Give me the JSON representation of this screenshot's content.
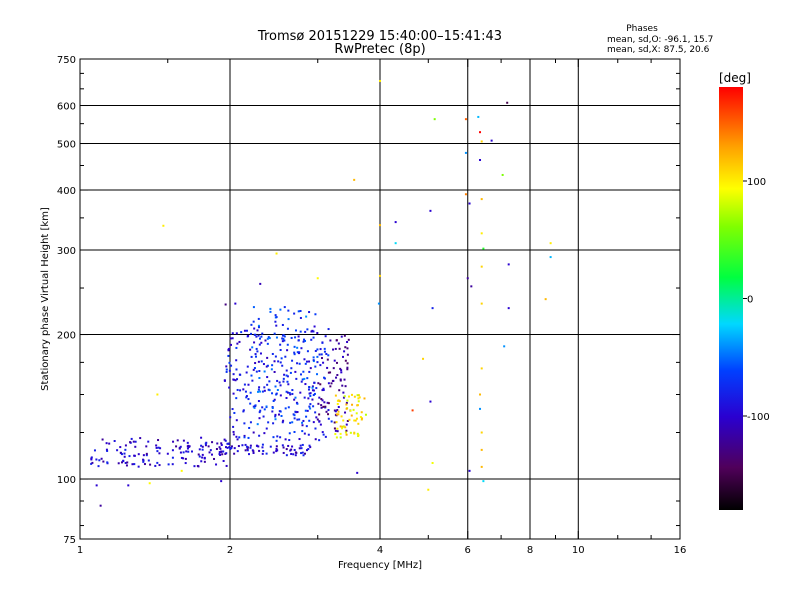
{
  "header": {
    "title_line1": "Tromsø 20151229 15:40:00–15:41:43",
    "title_line2": "RwPretec (8p)"
  },
  "stats": {
    "heading": "Phases",
    "line1": "mean, sd,O: -96.1, 15.7",
    "line2": "mean, sd,X:  87.5, 20.6"
  },
  "colorbar": {
    "unit": "[deg]",
    "tick_labels": [
      "100",
      "0",
      "-100"
    ],
    "tick_values": [
      100,
      0,
      -100
    ],
    "range": [
      -180,
      180
    ],
    "colormap": "rainbow (black-purple-blue-cyan-green-yellow-red)"
  },
  "chart_data": {
    "type": "scatter",
    "xlabel": "Frequency [MHz]",
    "ylabel": "Stationary phase Virtual Height [km]",
    "xscale": "log",
    "yscale": "log",
    "xlim": [
      1,
      16
    ],
    "ylim": [
      75,
      750
    ],
    "x_ticks": [
      1,
      2,
      4,
      6,
      8,
      10,
      16
    ],
    "x_tick_labels": [
      "1",
      "2",
      "4",
      "6",
      "8",
      "10",
      "16"
    ],
    "y_ticks": [
      75,
      100,
      200,
      300,
      400,
      500,
      600,
      750
    ],
    "y_tick_labels": [
      "75",
      "100",
      "200",
      "300",
      "400",
      "500",
      "600",
      "750"
    ],
    "grid": true,
    "grid_x": [
      2,
      4,
      6,
      8,
      10
    ],
    "grid_y": [
      100,
      200,
      300,
      400,
      500,
      600
    ],
    "color_encodes": "phase [deg]",
    "clusters": [
      {
        "x_range": [
          1.05,
          2.0
        ],
        "h_range": [
          106,
          122
        ],
        "phase": -100,
        "n": 140
      },
      {
        "x_range": [
          1.9,
          2.9
        ],
        "h_range": [
          112,
          118
        ],
        "phase": -100,
        "n": 70
      },
      {
        "x_range": [
          1.95,
          3.2
        ],
        "h_range": [
          120,
          210
        ],
        "phase": -85,
        "n": 260
      },
      {
        "x_range": [
          2.2,
          3.0
        ],
        "h_range": [
          130,
          230
        ],
        "phase": -65,
        "n": 120
      },
      {
        "x_range": [
          3.0,
          3.5
        ],
        "h_range": [
          125,
          200
        ],
        "phase": -120,
        "n": 80
      },
      {
        "x_range": [
          3.25,
          3.75
        ],
        "h_range": [
          122,
          150
        ],
        "phase": 100,
        "n": 60
      }
    ],
    "points": [
      {
        "x": 1.08,
        "y": 97,
        "phase": -100
      },
      {
        "x": 1.1,
        "y": 88,
        "phase": -120
      },
      {
        "x": 1.25,
        "y": 97,
        "phase": -100
      },
      {
        "x": 1.38,
        "y": 98,
        "phase": 95
      },
      {
        "x": 1.47,
        "y": 337,
        "phase": 100
      },
      {
        "x": 1.43,
        "y": 150,
        "phase": 100
      },
      {
        "x": 1.6,
        "y": 104,
        "phase": 95
      },
      {
        "x": 1.92,
        "y": 99,
        "phase": -100
      },
      {
        "x": 1.96,
        "y": 231,
        "phase": -130
      },
      {
        "x": 2.05,
        "y": 232,
        "phase": -100
      },
      {
        "x": 2.3,
        "y": 255,
        "phase": -110
      },
      {
        "x": 2.48,
        "y": 295,
        "phase": 100
      },
      {
        "x": 3.0,
        "y": 262,
        "phase": 95
      },
      {
        "x": 3.55,
        "y": 420,
        "phase": 120
      },
      {
        "x": 3.6,
        "y": 103,
        "phase": -100
      },
      {
        "x": 4.0,
        "y": 675,
        "phase": 100
      },
      {
        "x": 4.0,
        "y": 338,
        "phase": 120
      },
      {
        "x": 4.0,
        "y": 265,
        "phase": 110
      },
      {
        "x": 3.98,
        "y": 232,
        "phase": -40
      },
      {
        "x": 4.3,
        "y": 343,
        "phase": -100
      },
      {
        "x": 4.3,
        "y": 310,
        "phase": -20
      },
      {
        "x": 4.65,
        "y": 139,
        "phase": 160
      },
      {
        "x": 4.88,
        "y": 178,
        "phase": 110
      },
      {
        "x": 5.05,
        "y": 362,
        "phase": -100
      },
      {
        "x": 5.15,
        "y": 562,
        "phase": 60
      },
      {
        "x": 5.1,
        "y": 227,
        "phase": -80
      },
      {
        "x": 5.05,
        "y": 145,
        "phase": -100
      },
      {
        "x": 5.1,
        "y": 108,
        "phase": 90
      },
      {
        "x": 5.0,
        "y": 95,
        "phase": 100
      },
      {
        "x": 5.95,
        "y": 562,
        "phase": 150
      },
      {
        "x": 5.95,
        "y": 478,
        "phase": -40
      },
      {
        "x": 5.95,
        "y": 392,
        "phase": 140
      },
      {
        "x": 6.05,
        "y": 375,
        "phase": -100
      },
      {
        "x": 6.0,
        "y": 262,
        "phase": -120
      },
      {
        "x": 6.1,
        "y": 252,
        "phase": -120
      },
      {
        "x": 6.05,
        "y": 104,
        "phase": -100
      },
      {
        "x": 6.3,
        "y": 568,
        "phase": -30
      },
      {
        "x": 6.35,
        "y": 528,
        "phase": 180
      },
      {
        "x": 6.4,
        "y": 505,
        "phase": 110
      },
      {
        "x": 6.35,
        "y": 462,
        "phase": -100
      },
      {
        "x": 6.4,
        "y": 383,
        "phase": 120
      },
      {
        "x": 6.4,
        "y": 325,
        "phase": 100
      },
      {
        "x": 6.45,
        "y": 302,
        "phase": 30
      },
      {
        "x": 6.4,
        "y": 277,
        "phase": 110
      },
      {
        "x": 6.4,
        "y": 232,
        "phase": 110
      },
      {
        "x": 6.4,
        "y": 170,
        "phase": 110
      },
      {
        "x": 6.35,
        "y": 150,
        "phase": 120
      },
      {
        "x": 6.35,
        "y": 140,
        "phase": -40
      },
      {
        "x": 6.4,
        "y": 125,
        "phase": 110
      },
      {
        "x": 6.4,
        "y": 115,
        "phase": 120
      },
      {
        "x": 6.4,
        "y": 106,
        "phase": 120
      },
      {
        "x": 6.45,
        "y": 99,
        "phase": -20
      },
      {
        "x": 6.7,
        "y": 507,
        "phase": -100
      },
      {
        "x": 7.05,
        "y": 430,
        "phase": 60
      },
      {
        "x": 7.1,
        "y": 189,
        "phase": -40
      },
      {
        "x": 7.2,
        "y": 608,
        "phase": -150
      },
      {
        "x": 7.25,
        "y": 280,
        "phase": -100
      },
      {
        "x": 7.25,
        "y": 227,
        "phase": -100
      },
      {
        "x": 8.6,
        "y": 237,
        "phase": 120
      },
      {
        "x": 8.8,
        "y": 310,
        "phase": 100
      },
      {
        "x": 8.8,
        "y": 290,
        "phase": -30
      }
    ]
  }
}
